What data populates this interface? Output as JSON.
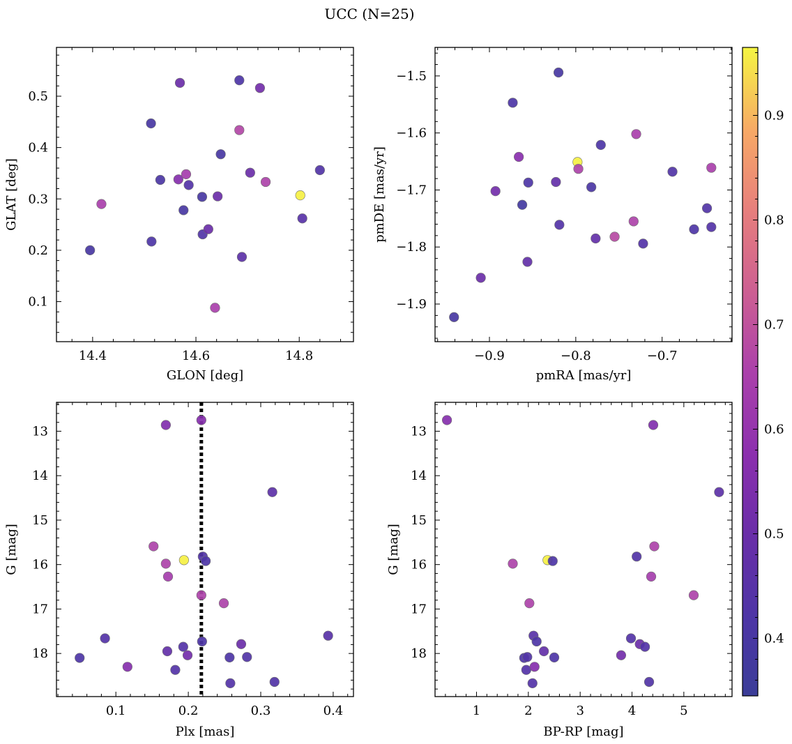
{
  "figure": {
    "title": "UCC (N=25)",
    "colorbar": {
      "range": [
        0.345,
        0.965
      ],
      "ticks": [
        0.4,
        0.5,
        0.6,
        0.7,
        0.8,
        0.9
      ],
      "tick_labels": [
        "0.4",
        "0.5",
        "0.6",
        "0.7",
        "0.8",
        "0.9"
      ],
      "colormap": "plasma"
    }
  },
  "chart_data": [
    {
      "id": "glon-glat",
      "type": "scatter",
      "xlabel": "GLON [deg]",
      "ylabel": "GLAT [deg]",
      "xlim": [
        14.33,
        14.905
      ],
      "ylim": [
        0.022,
        0.595
      ],
      "xticks": [
        14.4,
        14.6,
        14.8
      ],
      "xtick_labels": [
        "14.4",
        "14.6",
        "14.8"
      ],
      "yticks": [
        0.1,
        0.2,
        0.3,
        0.4,
        0.5
      ],
      "ytick_labels": [
        "0.1",
        "0.2",
        "0.3",
        "0.4",
        "0.5"
      ],
      "y_inverted": false,
      "points": [
        {
          "x": 14.395,
          "y": 0.2,
          "c": 0.4
        },
        {
          "x": 14.417,
          "y": 0.29,
          "c": 0.65
        },
        {
          "x": 14.513,
          "y": 0.447,
          "c": 0.4
        },
        {
          "x": 14.514,
          "y": 0.217,
          "c": 0.42
        },
        {
          "x": 14.531,
          "y": 0.337,
          "c": 0.41
        },
        {
          "x": 14.566,
          "y": 0.338,
          "c": 0.56
        },
        {
          "x": 14.569,
          "y": 0.526,
          "c": 0.5
        },
        {
          "x": 14.576,
          "y": 0.278,
          "c": 0.4
        },
        {
          "x": 14.581,
          "y": 0.348,
          "c": 0.64
        },
        {
          "x": 14.586,
          "y": 0.327,
          "c": 0.44
        },
        {
          "x": 14.612,
          "y": 0.304,
          "c": 0.4
        },
        {
          "x": 14.613,
          "y": 0.231,
          "c": 0.43
        },
        {
          "x": 14.624,
          "y": 0.241,
          "c": 0.5
        },
        {
          "x": 14.637,
          "y": 0.088,
          "c": 0.65
        },
        {
          "x": 14.642,
          "y": 0.305,
          "c": 0.5
        },
        {
          "x": 14.648,
          "y": 0.387,
          "c": 0.4
        },
        {
          "x": 14.684,
          "y": 0.531,
          "c": 0.42
        },
        {
          "x": 14.684,
          "y": 0.434,
          "c": 0.67
        },
        {
          "x": 14.689,
          "y": 0.187,
          "c": 0.46
        },
        {
          "x": 14.705,
          "y": 0.351,
          "c": 0.5
        },
        {
          "x": 14.724,
          "y": 0.516,
          "c": 0.52
        },
        {
          "x": 14.735,
          "y": 0.333,
          "c": 0.66
        },
        {
          "x": 14.802,
          "y": 0.307,
          "c": 0.96
        },
        {
          "x": 14.806,
          "y": 0.262,
          "c": 0.45
        },
        {
          "x": 14.84,
          "y": 0.356,
          "c": 0.43
        }
      ]
    },
    {
      "id": "pmra-pmde",
      "type": "scatter",
      "xlabel": "pmRA [mas/yr]",
      "ylabel": "pmDE [mas/yr]",
      "xlim": [
        -0.963,
        -0.619
      ],
      "ylim": [
        -1.966,
        -1.45
      ],
      "xticks": [
        -0.9,
        -0.8,
        -0.7
      ],
      "xtick_labels": [
        "−0.9",
        "−0.8",
        "−0.7"
      ],
      "yticks": [
        -1.9,
        -1.8,
        -1.7,
        -1.6,
        -1.5
      ],
      "ytick_labels": [
        "−1.9",
        "−1.8",
        "−1.7",
        "−1.6",
        "−1.5"
      ],
      "y_inverted": false,
      "points": [
        {
          "x": -0.941,
          "y": -1.923,
          "c": 0.4
        },
        {
          "x": -0.91,
          "y": -1.854,
          "c": 0.5
        },
        {
          "x": -0.893,
          "y": -1.702,
          "c": 0.52
        },
        {
          "x": -0.873,
          "y": -1.547,
          "c": 0.42
        },
        {
          "x": -0.866,
          "y": -1.642,
          "c": 0.57
        },
        {
          "x": -0.862,
          "y": -1.726,
          "c": 0.38
        },
        {
          "x": -0.856,
          "y": -1.826,
          "c": 0.48
        },
        {
          "x": -0.855,
          "y": -1.687,
          "c": 0.42
        },
        {
          "x": -0.823,
          "y": -1.686,
          "c": 0.48
        },
        {
          "x": -0.82,
          "y": -1.494,
          "c": 0.4
        },
        {
          "x": -0.819,
          "y": -1.761,
          "c": 0.44
        },
        {
          "x": -0.798,
          "y": -1.651,
          "c": 0.96
        },
        {
          "x": -0.797,
          "y": -1.663,
          "c": 0.66
        },
        {
          "x": -0.782,
          "y": -1.695,
          "c": 0.41
        },
        {
          "x": -0.777,
          "y": -1.785,
          "c": 0.48
        },
        {
          "x": -0.771,
          "y": -1.621,
          "c": 0.42
        },
        {
          "x": -0.755,
          "y": -1.782,
          "c": 0.68
        },
        {
          "x": -0.733,
          "y": -1.755,
          "c": 0.66
        },
        {
          "x": -0.73,
          "y": -1.602,
          "c": 0.65
        },
        {
          "x": -0.722,
          "y": -1.794,
          "c": 0.44
        },
        {
          "x": -0.688,
          "y": -1.668,
          "c": 0.43
        },
        {
          "x": -0.663,
          "y": -1.769,
          "c": 0.42
        },
        {
          "x": -0.648,
          "y": -1.732,
          "c": 0.43
        },
        {
          "x": -0.643,
          "y": -1.661,
          "c": 0.65
        },
        {
          "x": -0.643,
          "y": -1.765,
          "c": 0.44
        }
      ]
    },
    {
      "id": "plx-g",
      "type": "scatter",
      "xlabel": "Plx [mas]",
      "ylabel": "G [mag]",
      "xlim": [
        0.018,
        0.428
      ],
      "ylim": [
        18.97,
        12.35
      ],
      "xticks": [
        0.1,
        0.2,
        0.3,
        0.4
      ],
      "xtick_labels": [
        "0.1",
        "0.2",
        "0.3",
        "0.4"
      ],
      "yticks": [
        13,
        14,
        15,
        16,
        17,
        18
      ],
      "ytick_labels": [
        "13",
        "14",
        "15",
        "16",
        "17",
        "18"
      ],
      "y_inverted": true,
      "vline": 0.218,
      "points": [
        {
          "x": 0.05,
          "y": 18.1,
          "c": 0.42
        },
        {
          "x": 0.085,
          "y": 17.66,
          "c": 0.44
        },
        {
          "x": 0.116,
          "y": 18.3,
          "c": 0.56
        },
        {
          "x": 0.152,
          "y": 15.59,
          "c": 0.66
        },
        {
          "x": 0.169,
          "y": 12.86,
          "c": 0.55
        },
        {
          "x": 0.169,
          "y": 15.98,
          "c": 0.66
        },
        {
          "x": 0.171,
          "y": 17.95,
          "c": 0.48
        },
        {
          "x": 0.172,
          "y": 16.27,
          "c": 0.64
        },
        {
          "x": 0.182,
          "y": 18.37,
          "c": 0.44
        },
        {
          "x": 0.193,
          "y": 17.85,
          "c": 0.44
        },
        {
          "x": 0.194,
          "y": 15.9,
          "c": 0.96
        },
        {
          "x": 0.199,
          "y": 18.04,
          "c": 0.52
        },
        {
          "x": 0.218,
          "y": 12.75,
          "c": 0.56
        },
        {
          "x": 0.218,
          "y": 16.69,
          "c": 0.66
        },
        {
          "x": 0.219,
          "y": 17.73,
          "c": 0.42
        },
        {
          "x": 0.22,
          "y": 15.82,
          "c": 0.43
        },
        {
          "x": 0.224,
          "y": 15.92,
          "c": 0.42
        },
        {
          "x": 0.249,
          "y": 16.87,
          "c": 0.66
        },
        {
          "x": 0.257,
          "y": 18.09,
          "c": 0.42
        },
        {
          "x": 0.258,
          "y": 18.67,
          "c": 0.44
        },
        {
          "x": 0.273,
          "y": 17.79,
          "c": 0.5
        },
        {
          "x": 0.281,
          "y": 18.08,
          "c": 0.43
        },
        {
          "x": 0.316,
          "y": 14.37,
          "c": 0.46
        },
        {
          "x": 0.319,
          "y": 18.64,
          "c": 0.43
        },
        {
          "x": 0.393,
          "y": 17.6,
          "c": 0.45
        }
      ]
    },
    {
      "id": "bprp-g",
      "type": "scatter",
      "xlabel": "BP-RP [mag]",
      "ylabel": "G [mag]",
      "xlim": [
        0.2,
        5.93
      ],
      "ylim": [
        18.97,
        12.35
      ],
      "xticks": [
        1,
        2,
        3,
        4,
        5
      ],
      "xtick_labels": [
        "1",
        "2",
        "3",
        "4",
        "5"
      ],
      "yticks": [
        13,
        14,
        15,
        16,
        17,
        18
      ],
      "ytick_labels": [
        "13",
        "14",
        "15",
        "16",
        "17",
        "18"
      ],
      "y_inverted": true,
      "points": [
        {
          "x": 0.43,
          "y": 12.75,
          "c": 0.56
        },
        {
          "x": 1.7,
          "y": 15.98,
          "c": 0.66
        },
        {
          "x": 1.92,
          "y": 18.1,
          "c": 0.42
        },
        {
          "x": 1.96,
          "y": 18.37,
          "c": 0.44
        },
        {
          "x": 1.98,
          "y": 18.08,
          "c": 0.43
        },
        {
          "x": 2.02,
          "y": 16.87,
          "c": 0.66
        },
        {
          "x": 2.08,
          "y": 18.67,
          "c": 0.44
        },
        {
          "x": 2.1,
          "y": 17.6,
          "c": 0.45
        },
        {
          "x": 2.12,
          "y": 18.3,
          "c": 0.56
        },
        {
          "x": 2.16,
          "y": 17.73,
          "c": 0.42
        },
        {
          "x": 2.3,
          "y": 17.95,
          "c": 0.48
        },
        {
          "x": 2.37,
          "y": 15.9,
          "c": 0.96
        },
        {
          "x": 2.47,
          "y": 15.92,
          "c": 0.42
        },
        {
          "x": 2.5,
          "y": 18.09,
          "c": 0.42
        },
        {
          "x": 3.79,
          "y": 18.04,
          "c": 0.52
        },
        {
          "x": 3.98,
          "y": 17.66,
          "c": 0.44
        },
        {
          "x": 4.09,
          "y": 15.82,
          "c": 0.43
        },
        {
          "x": 4.15,
          "y": 17.79,
          "c": 0.5
        },
        {
          "x": 4.25,
          "y": 17.85,
          "c": 0.44
        },
        {
          "x": 4.33,
          "y": 18.64,
          "c": 0.43
        },
        {
          "x": 4.37,
          "y": 16.27,
          "c": 0.64
        },
        {
          "x": 4.41,
          "y": 12.86,
          "c": 0.55
        },
        {
          "x": 4.43,
          "y": 15.59,
          "c": 0.66
        },
        {
          "x": 5.19,
          "y": 16.69,
          "c": 0.66
        },
        {
          "x": 5.68,
          "y": 14.37,
          "c": 0.46
        }
      ]
    }
  ]
}
